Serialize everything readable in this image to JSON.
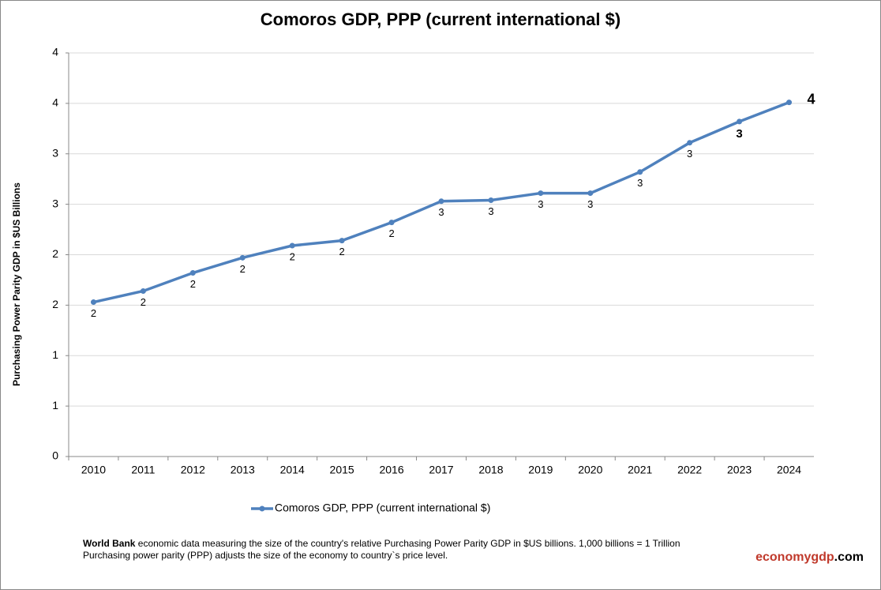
{
  "chart_data": {
    "type": "line",
    "title": "Comoros GDP, PPP (current international $)",
    "y_label": "Purchasing Power Parity GDP in $US Billions",
    "categories": [
      "2010",
      "2011",
      "2012",
      "2013",
      "2014",
      "2015",
      "2016",
      "2017",
      "2018",
      "2019",
      "2020",
      "2021",
      "2022",
      "2023",
      "2024"
    ],
    "series": [
      {
        "name": "Comoros GDP, PPP (current international $)",
        "color": "#4f81bd",
        "values": [
          1.53,
          1.64,
          1.82,
          1.97,
          2.09,
          2.14,
          2.32,
          2.53,
          2.54,
          2.61,
          2.61,
          2.82,
          3.11,
          3.32,
          3.51
        ],
        "value_labels": [
          "2",
          "2",
          "2",
          "2",
          "2",
          "2",
          "2",
          "3",
          "3",
          "3",
          "3",
          "3",
          "3",
          "3",
          "4"
        ]
      }
    ],
    "ylim": [
      0,
      4
    ],
    "yticks": [
      0,
      {
        "value": 0.5,
        "label": "1"
      },
      1,
      {
        "value": 1.5,
        "label": "2"
      },
      2,
      {
        "value": 2.5,
        "label": "3"
      },
      3,
      {
        "value": 3.5,
        "label": "4"
      },
      4
    ],
    "grid": true,
    "legend": "bottom"
  },
  "footer": {
    "source_bold": "World Bank",
    "line1": " economic data  measuring the size of the country's relative  Purchasing Power Parity GDP in $US billions. 1,000 billions = 1 Trillion",
    "line2": "Purchasing power parity (PPP) adjusts the size of the economy to country`s price level.",
    "brand_main": "economygdp",
    "brand_suffix": ".com"
  }
}
